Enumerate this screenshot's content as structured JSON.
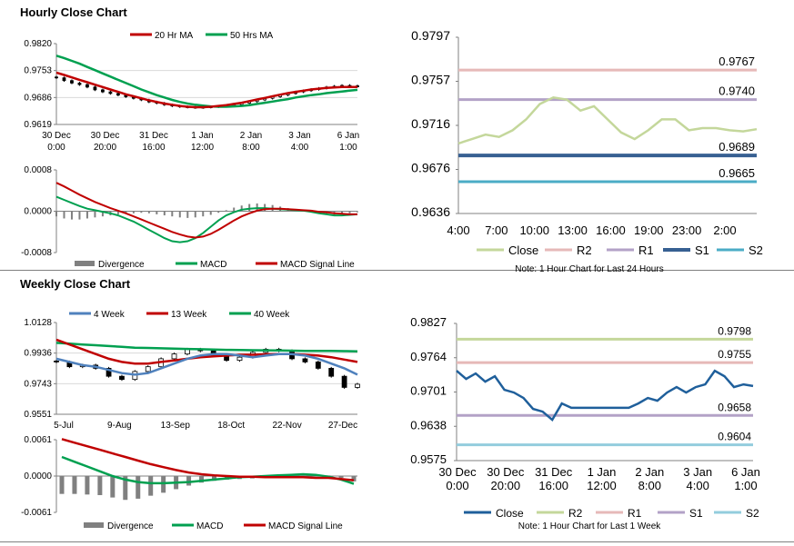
{
  "hourly": {
    "title": "Hourly Close Chart",
    "candle": {
      "type": "candlestick",
      "legend": [
        "20 Hr MA",
        "50 Hrs MA"
      ],
      "colors": {
        "ma20": "#c00000",
        "ma50": "#00a050",
        "candle": "#000000"
      },
      "yticks": [
        "0.9820",
        "0.9753",
        "0.9686",
        "0.9619"
      ],
      "ylim": [
        0.9619,
        0.982
      ],
      "xticks": [
        [
          "30 Dec",
          "0:00"
        ],
        [
          "30 Dec",
          "20:00"
        ],
        [
          "31 Dec",
          "16:00"
        ],
        [
          "1 Jan",
          "12:00"
        ],
        [
          "2 Jan",
          "8:00"
        ],
        [
          "3 Jan",
          "4:00"
        ],
        [
          "6 Jan",
          "1:00"
        ]
      ],
      "close": [
        0.9735,
        0.9728,
        0.9722,
        0.9718,
        0.9712,
        0.9705,
        0.97,
        0.9696,
        0.9692,
        0.9688,
        0.9684,
        0.968,
        0.9675,
        0.9672,
        0.9668,
        0.9665,
        0.9663,
        0.9662,
        0.9661,
        0.9662,
        0.9663,
        0.9664,
        0.9666,
        0.9668,
        0.9672,
        0.9676,
        0.968,
        0.9684,
        0.9688,
        0.9692,
        0.9696,
        0.97,
        0.9703,
        0.9706,
        0.9709,
        0.9712,
        0.9714,
        0.9716,
        0.9715,
        0.9714
      ],
      "ma20": [
        0.9748,
        0.9742,
        0.9736,
        0.973,
        0.9724,
        0.9718,
        0.9712,
        0.9706,
        0.97,
        0.9694,
        0.9689,
        0.9684,
        0.9679,
        0.9675,
        0.9671,
        0.9668,
        0.9665,
        0.9663,
        0.9662,
        0.9662,
        0.9663,
        0.9665,
        0.9667,
        0.967,
        0.9673,
        0.9677,
        0.9681,
        0.9685,
        0.9689,
        0.9693,
        0.9697,
        0.97,
        0.9703,
        0.9706,
        0.9708,
        0.971,
        0.9711,
        0.9712,
        0.9712,
        0.9712
      ],
      "ma50": [
        0.979,
        0.9784,
        0.9777,
        0.977,
        0.9762,
        0.9754,
        0.9746,
        0.9738,
        0.973,
        0.9722,
        0.9714,
        0.9706,
        0.9699,
        0.9692,
        0.9686,
        0.968,
        0.9675,
        0.9671,
        0.9668,
        0.9666,
        0.9664,
        0.9663,
        0.9663,
        0.9664,
        0.9665,
        0.9667,
        0.967,
        0.9673,
        0.9676,
        0.9679,
        0.9682,
        0.9686,
        0.9689,
        0.9692,
        0.9694,
        0.9697,
        0.9699,
        0.9701,
        0.9703,
        0.9705
      ]
    },
    "macd": {
      "type": "bar",
      "legend": [
        "Divergence",
        "MACD",
        "MACD Signal Line"
      ],
      "colors": {
        "divergence": "#808080",
        "macd": "#00a050",
        "signal": "#c00000"
      },
      "yticks": [
        "0.0008",
        "0.0000",
        "-0.0008"
      ],
      "ylim": [
        -0.0008,
        0.0008
      ],
      "divergence": [
        -0.0001,
        -0.00014,
        -0.00016,
        -0.00016,
        -0.00014,
        -0.00012,
        -0.0001,
        -8e-05,
        -6e-05,
        -5e-05,
        -4e-05,
        -3e-05,
        -4e-05,
        -6e-05,
        -8e-05,
        -0.0001,
        -0.00012,
        -0.00013,
        -0.00012,
        -0.0001,
        -7e-05,
        -3e-05,
        2e-05,
        7e-05,
        0.00011,
        0.00014,
        0.00015,
        0.00014,
        0.00012,
        9e-05,
        6e-05,
        3e-05,
        1e-05,
        -2e-05,
        -5e-05,
        -7e-05,
        -7e-05,
        -6e-05,
        -4e-05,
        -2e-05
      ],
      "macd": [
        0.00028,
        0.00022,
        0.00016,
        0.0001,
        5e-05,
        2e-05,
        -1e-05,
        -4e-05,
        -8e-05,
        -0.00014,
        -0.0002,
        -0.00028,
        -0.00036,
        -0.00044,
        -0.00052,
        -0.00058,
        -0.0006,
        -0.00058,
        -0.00052,
        -0.00042,
        -0.0003,
        -0.00018,
        -8e-05,
        -2e-05,
        3e-05,
        5e-05,
        6e-05,
        6e-05,
        5e-05,
        4e-05,
        3e-05,
        2e-05,
        1e-05,
        -1e-05,
        -4e-05,
        -6e-05,
        -8e-05,
        -8e-05,
        -7e-05,
        -6e-05
      ],
      "signal": [
        0.00055,
        0.00048,
        0.0004,
        0.00032,
        0.00025,
        0.00018,
        0.00012,
        6e-05,
        1e-05,
        -4e-05,
        -0.0001,
        -0.00016,
        -0.00022,
        -0.00028,
        -0.00034,
        -0.0004,
        -0.00045,
        -0.00049,
        -0.00051,
        -0.00049,
        -0.00044,
        -0.00036,
        -0.00027,
        -0.00018,
        -0.0001,
        -4e-05,
        1e-05,
        4e-05,
        5e-05,
        5e-05,
        4e-05,
        3e-05,
        2e-05,
        1e-05,
        -1e-05,
        -2e-05,
        -4e-05,
        -5e-05,
        -6e-05,
        -6e-05
      ]
    },
    "line": {
      "type": "line",
      "yticks": [
        "0.9797",
        "0.9757",
        "0.9716",
        "0.9676",
        "0.9636"
      ],
      "ylim": [
        0.9636,
        0.9797
      ],
      "xticks": [
        "4:00",
        "7:00",
        "10:00",
        "13:00",
        "16:00",
        "19:00",
        "23:00",
        "2:00"
      ],
      "close": [
        0.97,
        0.9704,
        0.9708,
        0.9706,
        0.9712,
        0.9722,
        0.9736,
        0.9742,
        0.974,
        0.973,
        0.9734,
        0.9722,
        0.971,
        0.9704,
        0.9712,
        0.9722,
        0.9722,
        0.9712,
        0.9714,
        0.9714,
        0.9712,
        0.9711,
        0.9713
      ],
      "levels": [
        {
          "name": "R2",
          "value": 0.9767,
          "label": "0.9767"
        },
        {
          "name": "R1",
          "value": 0.974,
          "label": "0.9740"
        },
        {
          "name": "S1",
          "value": 0.9689,
          "label": "0.9689"
        },
        {
          "name": "S2",
          "value": 0.9665,
          "label": "0.9665"
        }
      ],
      "legend": [
        "Close",
        "R2",
        "R1",
        "S1",
        "S2"
      ],
      "colors": {
        "close": "#c4d79b",
        "R2": "#e6b9b8",
        "R1": "#b3a2c7",
        "S1": "#376092",
        "S2": "#4bacc6"
      },
      "note": "Note: 1 Hour Chart for Last 24 Hours"
    }
  },
  "weekly": {
    "title": "Weekly Close Chart",
    "candle": {
      "type": "candlestick",
      "legend": [
        "4 Week",
        "13 Week",
        "40 Week"
      ],
      "colors": {
        "ma4": "#4f81bd",
        "ma13": "#c00000",
        "ma40": "#00a050",
        "candle": "#000000"
      },
      "yticks": [
        "1.0128",
        "0.9936",
        "0.9743",
        "0.9551"
      ],
      "ylim": [
        0.9551,
        1.0128
      ],
      "xticks": [
        "5-Jul",
        "9-Aug",
        "13-Sep",
        "18-Oct",
        "22-Nov",
        "27-Dec"
      ],
      "close": [
        0.988,
        0.985,
        0.986,
        0.984,
        0.979,
        0.977,
        0.982,
        0.985,
        0.99,
        0.993,
        0.996,
        0.995,
        0.992,
        0.989,
        0.991,
        0.994,
        0.996,
        0.995,
        0.99,
        0.988,
        0.984,
        0.979,
        0.972,
        0.974
      ],
      "ma4": [
        0.99,
        0.988,
        0.986,
        0.985,
        0.983,
        0.981,
        0.98,
        0.981,
        0.984,
        0.987,
        0.99,
        0.992,
        0.993,
        0.993,
        0.992,
        0.991,
        0.992,
        0.993,
        0.993,
        0.992,
        0.99,
        0.987,
        0.984,
        0.98
      ],
      "ma13": [
        1.002,
        0.999,
        0.996,
        0.993,
        0.99,
        0.988,
        0.987,
        0.987,
        0.988,
        0.989,
        0.99,
        0.991,
        0.9915,
        0.992,
        0.9925,
        0.9925,
        0.9928,
        0.993,
        0.993,
        0.9925,
        0.992,
        0.991,
        0.9895,
        0.988
      ],
      "ma40": [
        1.0,
        0.9995,
        0.999,
        0.9985,
        0.998,
        0.9975,
        0.997,
        0.9968,
        0.9966,
        0.9964,
        0.9962,
        0.996,
        0.9958,
        0.9956,
        0.9955,
        0.9954,
        0.9953,
        0.9952,
        0.9951,
        0.995,
        0.995,
        0.9949,
        0.9948,
        0.9947
      ]
    },
    "macd": {
      "type": "bar",
      "legend": [
        "Divergence",
        "MACD",
        "MACD Signal Line"
      ],
      "colors": {
        "divergence": "#808080",
        "macd": "#00a050",
        "signal": "#c00000"
      },
      "yticks": [
        "0.0061",
        "0.0000",
        "-0.0061"
      ],
      "ylim": [
        -0.0061,
        0.0061
      ],
      "divergence": [
        -0.003,
        -0.003,
        -0.0031,
        -0.0032,
        -0.0036,
        -0.004,
        -0.0038,
        -0.0033,
        -0.0028,
        -0.0022,
        -0.0016,
        -0.0011,
        -0.0008,
        -0.0006,
        -0.0005,
        -0.0004,
        -0.0003,
        -0.0002,
        -0.0001,
        0.0001,
        0.0002,
        0.0001,
        -0.0003,
        -0.0009
      ],
      "macd": [
        0.0032,
        0.0024,
        0.0016,
        0.0008,
        0.0,
        -0.0006,
        -0.001,
        -0.0012,
        -0.0012,
        -0.0011,
        -0.001,
        -0.0008,
        -0.0006,
        -0.0004,
        -0.0002,
        -0.0001,
        0.0,
        0.0001,
        0.0002,
        0.0003,
        0.0002,
        -0.0001,
        -0.0006,
        -0.0013
      ],
      "signal": [
        0.0062,
        0.0056,
        0.005,
        0.0044,
        0.0038,
        0.0032,
        0.0026,
        0.002,
        0.0015,
        0.001,
        0.0006,
        0.0003,
        0.0001,
        -0.0,
        -0.0001,
        -0.0001,
        -0.0002,
        -0.0002,
        -0.0002,
        -0.0002,
        -0.0003,
        -0.0003,
        -0.0005,
        -0.0007
      ]
    },
    "line": {
      "type": "line",
      "yticks": [
        "0.9827",
        "0.9764",
        "0.9701",
        "0.9638",
        "0.9575"
      ],
      "ylim": [
        0.9575,
        0.9827
      ],
      "xticks": [
        [
          "30 Dec",
          "0:00"
        ],
        [
          "30 Dec",
          "20:00"
        ],
        [
          "31 Dec",
          "16:00"
        ],
        [
          "1 Jan",
          "12:00"
        ],
        [
          "2 Jan",
          "8:00"
        ],
        [
          "3 Jan",
          "4:00"
        ],
        [
          "6 Jan",
          "1:00"
        ]
      ],
      "close": [
        0.974,
        0.9725,
        0.9735,
        0.972,
        0.973,
        0.9705,
        0.97,
        0.969,
        0.967,
        0.9665,
        0.965,
        0.968,
        0.9672,
        0.9672,
        0.9672,
        0.9672,
        0.9672,
        0.9672,
        0.9672,
        0.968,
        0.969,
        0.9685,
        0.97,
        0.971,
        0.97,
        0.971,
        0.9715,
        0.974,
        0.973,
        0.971,
        0.9715,
        0.9712
      ],
      "levels": [
        {
          "name": "R2",
          "value": 0.9798,
          "label": "0.9798"
        },
        {
          "name": "R1",
          "value": 0.9755,
          "label": "0.9755"
        },
        {
          "name": "S1",
          "value": 0.9658,
          "label": "0.9658"
        },
        {
          "name": "S2",
          "value": 0.9604,
          "label": "0.9604"
        }
      ],
      "legend": [
        "Close",
        "R2",
        "R1",
        "S1",
        "S2"
      ],
      "colors": {
        "close": "#1f5f9b",
        "R2": "#c4d79b",
        "R1": "#e6b9b8",
        "S1": "#b3a2c7",
        "S2": "#93cddd"
      },
      "note": "Note: 1 Hour Chart for Last 1 Week"
    }
  },
  "chart_data": [
    {
      "type": "line",
      "title": "Hourly Close Chart",
      "series": [
        {
          "name": "20 Hr MA"
        },
        {
          "name": "50 Hrs MA"
        }
      ],
      "ylim": [
        0.9619,
        0.982
      ]
    },
    {
      "type": "bar",
      "series": [
        {
          "name": "Divergence"
        },
        {
          "name": "MACD"
        },
        {
          "name": "MACD Signal Line"
        }
      ],
      "ylim": [
        -0.0008,
        0.0008
      ]
    },
    {
      "type": "line",
      "note": "Note: 1 Hour Chart for Last 24 Hours",
      "levels": {
        "R2": 0.9767,
        "R1": 0.974,
        "S1": 0.9689,
        "S2": 0.9665
      },
      "ylim": [
        0.9636,
        0.9797
      ]
    },
    {
      "type": "line",
      "title": "Weekly Close Chart",
      "series": [
        {
          "name": "4 Week"
        },
        {
          "name": "13 Week"
        },
        {
          "name": "40 Week"
        }
      ],
      "ylim": [
        0.9551,
        1.0128
      ]
    },
    {
      "type": "bar",
      "series": [
        {
          "name": "Divergence"
        },
        {
          "name": "MACD"
        },
        {
          "name": "MACD Signal Line"
        }
      ],
      "ylim": [
        -0.0061,
        0.0061
      ]
    },
    {
      "type": "line",
      "note": "Note: 1 Hour Chart for Last 1 Week",
      "levels": {
        "R2": 0.9798,
        "R1": 0.9755,
        "S1": 0.9658,
        "S2": 0.9604
      },
      "ylim": [
        0.9575,
        0.9827
      ]
    }
  ]
}
